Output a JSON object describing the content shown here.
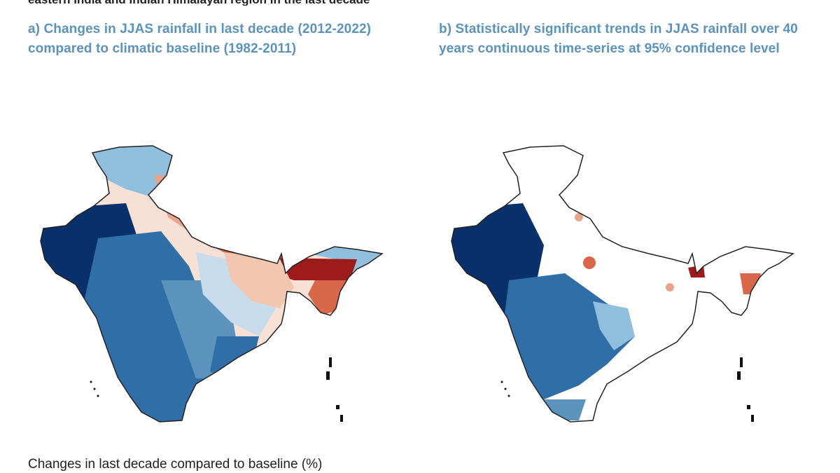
{
  "header": {
    "cut_text": "eastern India and Indian Himalayan region in the last decade"
  },
  "panel_a": {
    "title_line1": "a) Changes in JJAS rainfall in last decade (2012-2022)",
    "title_line2": "compared to climatic baseline (1982-2011)"
  },
  "panel_b": {
    "title_line1": "b) Statistically significant trends in JJAS rainfall over 40",
    "title_line2": "years continuous time-series at 95% confidence level"
  },
  "legend": {
    "title": "Changes in last decade compared to baseline (%)"
  },
  "colors": {
    "title_blue": "#5b93bd",
    "deep_blue": "#08306b",
    "mid_blue": "#2f6ea6",
    "light_blue": "#8fbfdc",
    "pale_red": "#f2c6b0",
    "mid_red": "#d9674a",
    "deep_red": "#9e1b1b",
    "land_white": "#ffffff",
    "border": "#222222"
  }
}
